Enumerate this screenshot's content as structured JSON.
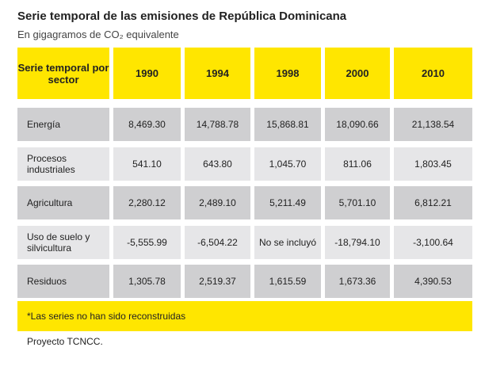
{
  "header": {
    "title": "Serie temporal de las emisiones de República Dominicana",
    "subtitle": "En gigagramos de CO₂ equivalente"
  },
  "table": {
    "columns": [
      "Serie temporal por sector",
      "1990",
      "1994",
      "1998",
      "2000",
      "2010"
    ],
    "rows": [
      [
        "Energía",
        "8,469.30",
        "14,788.78",
        "15,868.81",
        "18,090.66",
        "21,138.54"
      ],
      [
        "Procesos industriales",
        "541.10",
        "643.80",
        "1,045.70",
        "811.06",
        "1,803.45"
      ],
      [
        "Agricultura",
        "2,280.12",
        "2,489.10",
        "5,211.49",
        "5,701.10",
        "6,812.21"
      ],
      [
        "Uso de suelo y silvicultura",
        "-5,555.99",
        "-6,504.22",
        "No se incluyó",
        "-18,794.10",
        "-3,100.64"
      ],
      [
        "Residuos",
        "1,305.78",
        "2,519.37",
        "1,615.59",
        "1,673.36",
        "4,390.53"
      ]
    ]
  },
  "footnote": "*Las series no han sido reconstruidas",
  "source": "Proyecto TCNCC."
}
